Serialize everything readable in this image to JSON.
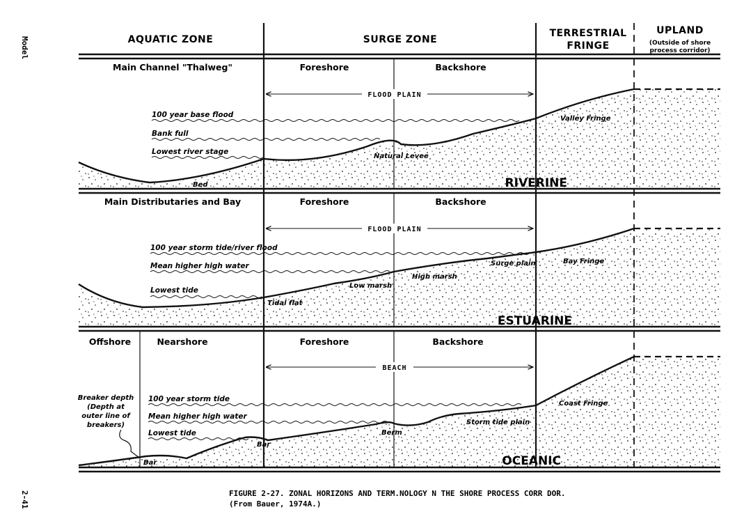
{
  "side": {
    "model": "Model",
    "page": "2-41"
  },
  "zones": {
    "aquatic": "AQUATIC ZONE",
    "surge": "SURGE ZONE",
    "terrestrial_1": "TERRESTRIAL",
    "terrestrial_2": "FRINGE",
    "upland": "UPLAND",
    "upland_note_1": "(Outside of shore",
    "upland_note_2": "process corridor)"
  },
  "riverine": {
    "name": "RIVERINE",
    "header_left": "Main Channel \"Thalweg\"",
    "foreshore": "Foreshore",
    "backshore": "Backshore",
    "plain": "FLOOD  PLAIN",
    "water_levels": [
      "100 year base flood",
      "Bank full",
      "Lowest river stage"
    ],
    "features": {
      "bed": "Bed",
      "levee": "Natural Levee",
      "fringe": "Valley Fringe"
    }
  },
  "estuarine": {
    "name": "ESTUARINE",
    "header_left": "Main Distributaries and Bay",
    "foreshore": "Foreshore",
    "backshore": "Backshore",
    "plain": "FLOOD  PLAIN",
    "water_levels": [
      "100 year storm tide/river flood",
      "Mean higher high water",
      "Lowest tide"
    ],
    "features": {
      "tidal_flat": "Tidal flat",
      "low_marsh": "Low marsh",
      "high_marsh": "High marsh",
      "surge_plain": "Surge plain",
      "fringe": "Bay Fringe"
    }
  },
  "oceanic": {
    "name": "OCEANIC",
    "offshore": "Offshore",
    "nearshore": "Nearshore",
    "foreshore": "Foreshore",
    "backshore": "Backshore",
    "plain": "BEACH",
    "water_levels": [
      "100 year storm tide",
      "Mean higher high water",
      "Lowest tide"
    ],
    "breaker_note": [
      "Breaker depth",
      "(Depth at",
      "outer line of",
      "breakers)"
    ],
    "features": {
      "bar_offshore": "Bar",
      "bar": "Bar",
      "berm": "Berm",
      "storm_plain": "Storm tide plain",
      "fringe": "Coast Fringe"
    }
  },
  "caption": {
    "line1": "FIGURE 2-27.  ZONAL HORIZONS AND TERM.NOLOGY  N THE SHORE PROCESS CORR DOR.",
    "line2": "(From Bauer, 1974A.)"
  }
}
